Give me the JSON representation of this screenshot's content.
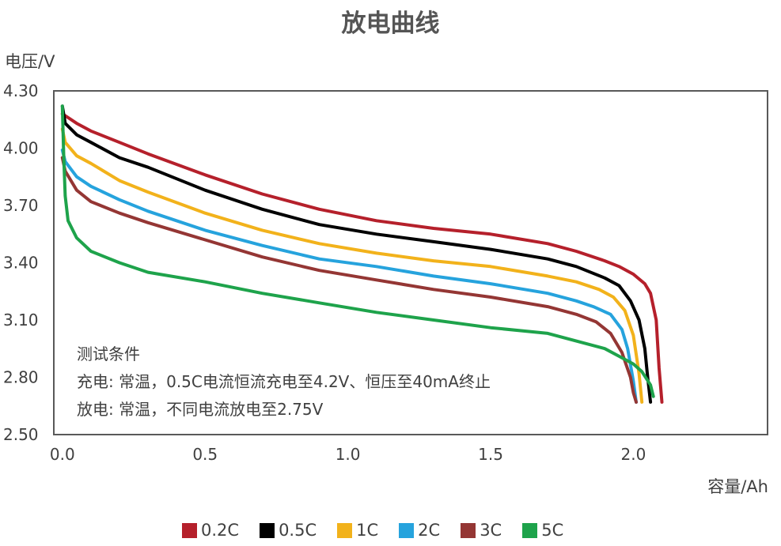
{
  "chart_data": {
    "type": "line",
    "title": "放电曲线",
    "xlabel": "容量/Ah",
    "ylabel": "电压/V",
    "xlim": [
      -0.03,
      2.47
    ],
    "ylim": [
      2.5,
      4.3
    ],
    "xticks": [
      "0.0",
      "0.5",
      "1.0",
      "1.5",
      "2.0"
    ],
    "xtick_values": [
      0,
      0.5,
      1.0,
      1.5,
      2.0
    ],
    "yticks": [
      "4.30",
      "4.00",
      "3.70",
      "3.40",
      "3.10",
      "2.80",
      "2.50"
    ],
    "ytick_values": [
      4.3,
      4.0,
      3.7,
      3.4,
      3.1,
      2.8,
      2.5
    ],
    "grid": false,
    "legend_position": "bottom",
    "annotations": [
      "测试条件",
      "充电: 常温，0.5C电流恒流充电至4.2V、恒压至40mA终止",
      "放电: 常温，不同电流放电至2.75V"
    ],
    "series": [
      {
        "name": "0.2C",
        "color": "#b5202b",
        "x": [
          0.0,
          0.05,
          0.1,
          0.2,
          0.3,
          0.5,
          0.7,
          0.9,
          1.1,
          1.3,
          1.5,
          1.7,
          1.8,
          1.9,
          1.95,
          2.0,
          2.04,
          2.06,
          2.08,
          2.09,
          2.1
        ],
        "y": [
          4.18,
          4.13,
          4.09,
          4.03,
          3.97,
          3.86,
          3.76,
          3.68,
          3.62,
          3.58,
          3.55,
          3.5,
          3.46,
          3.41,
          3.38,
          3.34,
          3.29,
          3.24,
          3.1,
          2.85,
          2.67
        ]
      },
      {
        "name": "0.5C",
        "color": "#000000",
        "x": [
          0.0,
          0.01,
          0.05,
          0.1,
          0.2,
          0.3,
          0.5,
          0.7,
          0.9,
          1.1,
          1.3,
          1.5,
          1.7,
          1.8,
          1.9,
          1.95,
          1.99,
          2.02,
          2.04,
          2.05,
          2.06
        ],
        "y": [
          4.22,
          4.13,
          4.07,
          4.03,
          3.95,
          3.9,
          3.78,
          3.68,
          3.6,
          3.55,
          3.51,
          3.47,
          3.42,
          3.38,
          3.32,
          3.28,
          3.2,
          3.1,
          2.95,
          2.8,
          2.67
        ]
      },
      {
        "name": "1C",
        "color": "#f2b21b",
        "x": [
          0.0,
          0.01,
          0.05,
          0.1,
          0.2,
          0.3,
          0.5,
          0.7,
          0.9,
          1.1,
          1.3,
          1.5,
          1.7,
          1.8,
          1.88,
          1.93,
          1.97,
          2.0,
          2.02,
          2.03
        ],
        "y": [
          4.1,
          4.03,
          3.96,
          3.92,
          3.83,
          3.77,
          3.66,
          3.57,
          3.5,
          3.45,
          3.41,
          3.38,
          3.33,
          3.3,
          3.26,
          3.22,
          3.15,
          3.02,
          2.82,
          2.67
        ]
      },
      {
        "name": "2C",
        "color": "#26a3dd",
        "x": [
          0.0,
          0.01,
          0.05,
          0.1,
          0.2,
          0.3,
          0.5,
          0.7,
          0.9,
          1.1,
          1.3,
          1.5,
          1.7,
          1.8,
          1.86,
          1.92,
          1.96,
          1.98,
          2.0,
          2.01
        ],
        "y": [
          3.99,
          3.93,
          3.85,
          3.8,
          3.73,
          3.67,
          3.57,
          3.49,
          3.42,
          3.38,
          3.33,
          3.29,
          3.24,
          3.2,
          3.17,
          3.13,
          3.05,
          2.95,
          2.78,
          2.67
        ]
      },
      {
        "name": "3C",
        "color": "#943634",
        "x": [
          0.0,
          0.01,
          0.05,
          0.1,
          0.2,
          0.3,
          0.5,
          0.7,
          0.9,
          1.1,
          1.3,
          1.5,
          1.7,
          1.8,
          1.87,
          1.92,
          1.96,
          1.99,
          2.0,
          2.01
        ],
        "y": [
          3.95,
          3.88,
          3.78,
          3.72,
          3.66,
          3.61,
          3.52,
          3.43,
          3.36,
          3.31,
          3.26,
          3.22,
          3.17,
          3.13,
          3.09,
          3.03,
          2.93,
          2.8,
          2.72,
          2.67
        ]
      },
      {
        "name": "5C",
        "color": "#1ea34b",
        "x": [
          0.0,
          0.005,
          0.01,
          0.02,
          0.05,
          0.1,
          0.2,
          0.3,
          0.5,
          0.7,
          0.9,
          1.1,
          1.3,
          1.5,
          1.7,
          1.8,
          1.9,
          1.95,
          2.0,
          2.03,
          2.06,
          2.07
        ],
        "y": [
          4.22,
          3.95,
          3.75,
          3.62,
          3.53,
          3.46,
          3.4,
          3.35,
          3.3,
          3.24,
          3.19,
          3.14,
          3.1,
          3.06,
          3.03,
          2.99,
          2.95,
          2.91,
          2.87,
          2.83,
          2.76,
          2.7
        ]
      }
    ]
  }
}
